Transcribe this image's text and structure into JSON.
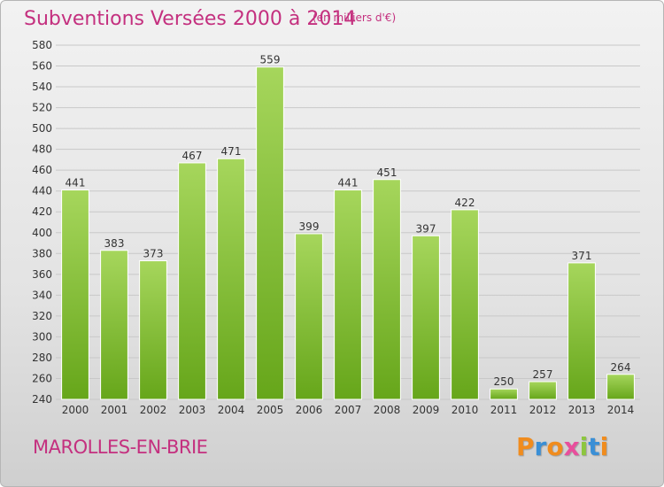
{
  "header": {
    "title": "Subventions Versées 2000 à 2014",
    "subtitle": "(en milliers d'€)"
  },
  "footer": {
    "city": "MAROLLES-EN-BRIE",
    "logo_text": "Proxiti",
    "logo_colors": [
      "#f08c1e",
      "#3a8fd6",
      "#f08c1e",
      "#e84f9c",
      "#8dc63f",
      "#3a8fd6",
      "#f08c1e"
    ]
  },
  "colors": {
    "title": "#c4307f",
    "bar_light": "#a6d65c",
    "bar_dark": "#66a61a",
    "grid": "#c8c8c8",
    "axis_text": "#333333"
  },
  "chart_data": {
    "type": "bar",
    "title": "Subventions Versées 2000 à 2014",
    "subtitle": "(en milliers d'€)",
    "categories": [
      "2000",
      "2001",
      "2002",
      "2003",
      "2004",
      "2005",
      "2006",
      "2007",
      "2008",
      "2009",
      "2010",
      "2011",
      "2012",
      "2013",
      "2014"
    ],
    "values": [
      441,
      383,
      373,
      467,
      471,
      559,
      399,
      441,
      451,
      397,
      422,
      250,
      257,
      371,
      264
    ],
    "ylim": [
      240,
      580
    ],
    "yticks": [
      240,
      260,
      280,
      300,
      320,
      340,
      360,
      380,
      400,
      420,
      440,
      460,
      480,
      500,
      520,
      540,
      560,
      580
    ],
    "grid": true,
    "data_labels": true
  }
}
